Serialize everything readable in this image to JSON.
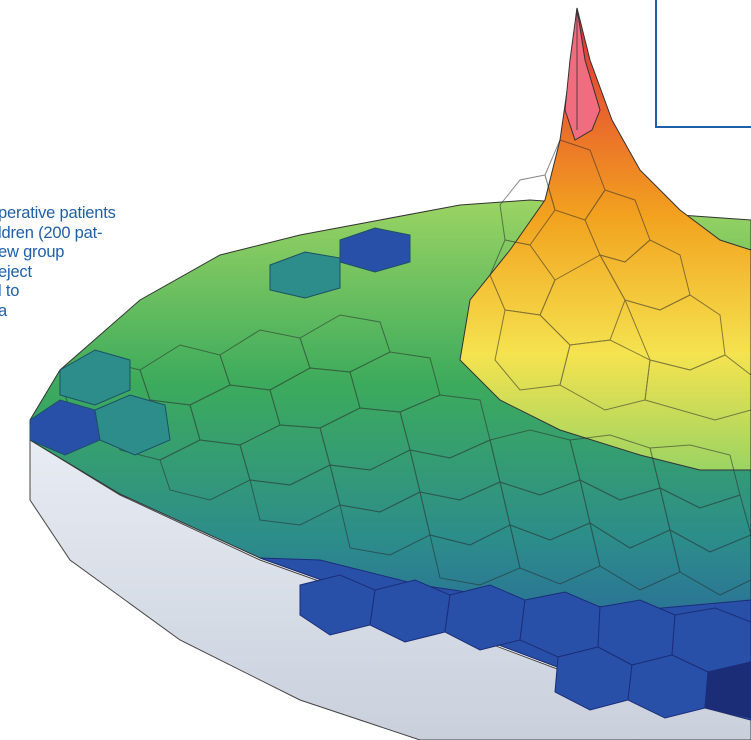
{
  "article": {
    "text_lines": [
      "perative patients",
      "ldren (200 pat-",
      "ew group",
      "eject",
      "l to",
      "a"
    ]
  },
  "figure": {
    "icon": "hexagonal-surface-plot-illustration",
    "colors": {
      "peak": "#e0283a",
      "peak_light": "#f06c7e",
      "high": "#f2a21f",
      "mid_high": "#f5e34f",
      "mid": "#9bd463",
      "mid_low": "#3dab5c",
      "low": "#2c8d8a",
      "base": "#2950a8",
      "base_dark": "#1c2d78",
      "side": "#dde3ec"
    }
  }
}
